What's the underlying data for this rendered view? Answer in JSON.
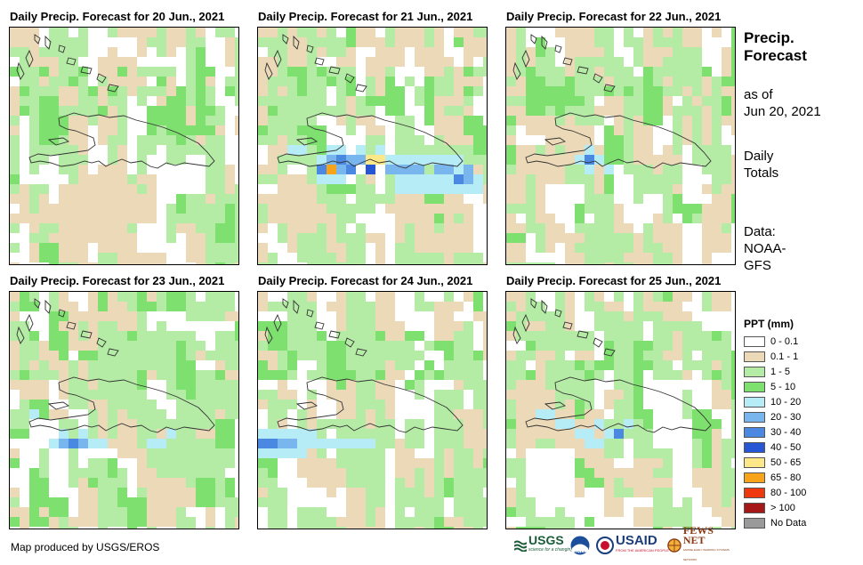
{
  "panels": [
    {
      "title": "Daily Precip. Forecast for 20 Jun., 2021",
      "seed": 11,
      "hot": []
    },
    {
      "title": "Daily Precip. Forecast for 21 Jun., 2021",
      "seed": 23,
      "hot": [
        [
          8,
          4,
          6
        ],
        [
          7,
          4,
          5
        ],
        [
          9,
          4,
          5
        ],
        [
          8,
          5,
          5
        ],
        [
          10,
          4,
          5
        ],
        [
          11,
          4,
          8
        ],
        [
          12,
          4,
          8
        ],
        [
          11,
          5,
          7
        ],
        [
          7,
          5,
          9
        ],
        [
          6,
          5,
          6
        ],
        [
          9,
          5,
          6
        ],
        [
          13,
          5,
          5
        ],
        [
          14,
          5,
          5
        ],
        [
          15,
          5,
          5
        ],
        [
          16,
          5,
          5
        ],
        [
          18,
          5,
          5
        ],
        [
          19,
          5,
          5
        ],
        [
          20,
          6,
          6
        ],
        [
          21,
          6,
          5
        ],
        [
          21,
          5,
          5
        ],
        [
          6,
          4,
          4
        ],
        [
          7,
          3,
          4
        ],
        [
          8,
          3,
          4
        ],
        [
          10,
          3,
          4
        ],
        [
          12,
          3,
          4
        ],
        [
          13,
          4,
          4
        ],
        [
          14,
          4,
          4
        ],
        [
          15,
          4,
          4
        ],
        [
          16,
          4,
          4
        ],
        [
          17,
          4,
          4
        ],
        [
          18,
          4,
          4
        ],
        [
          19,
          4,
          4
        ],
        [
          20,
          4,
          4
        ],
        [
          6,
          6,
          4
        ],
        [
          7,
          6,
          4
        ],
        [
          8,
          6,
          4
        ],
        [
          14,
          6,
          4
        ],
        [
          15,
          6,
          4
        ],
        [
          16,
          6,
          4
        ],
        [
          17,
          6,
          4
        ],
        [
          18,
          6,
          4
        ],
        [
          19,
          6,
          4
        ],
        [
          20,
          5,
          4
        ],
        [
          22,
          6,
          4
        ],
        [
          21,
          7,
          4
        ],
        [
          16,
          7,
          4
        ],
        [
          17,
          7,
          4
        ],
        [
          18,
          7,
          4
        ],
        [
          19,
          7,
          4
        ],
        [
          20,
          7,
          4
        ],
        [
          22,
          7,
          4
        ],
        [
          14,
          7,
          4
        ],
        [
          15,
          7,
          4
        ],
        [
          4,
          3,
          4
        ],
        [
          3,
          3,
          4
        ]
      ]
    },
    {
      "title": "Daily Precip. Forecast for 22 Jun., 2021",
      "seed": 37,
      "hot": [
        [
          8,
          4,
          6
        ],
        [
          7,
          4,
          4
        ],
        [
          9,
          4,
          4
        ],
        [
          8,
          3,
          4
        ],
        [
          8,
          5,
          4
        ],
        [
          10,
          5,
          4
        ]
      ]
    },
    {
      "title": "Daily Precip. Forecast for 23 Jun., 2021",
      "seed": 41,
      "hot": [
        [
          5,
          6,
          5
        ],
        [
          6,
          6,
          6
        ],
        [
          7,
          6,
          5
        ],
        [
          4,
          6,
          4
        ],
        [
          5,
          5,
          4
        ],
        [
          7,
          5,
          4
        ],
        [
          8,
          6,
          4
        ],
        [
          9,
          6,
          4
        ],
        [
          14,
          6,
          4
        ],
        [
          15,
          6,
          4
        ],
        [
          16,
          5,
          4
        ],
        [
          2,
          3,
          4
        ]
      ]
    },
    {
      "title": "Daily Precip. Forecast for 24 Jun., 2021",
      "seed": 53,
      "hot": [
        [
          0,
          6,
          6
        ],
        [
          1,
          6,
          6
        ],
        [
          2,
          6,
          5
        ],
        [
          3,
          6,
          5
        ],
        [
          0,
          5,
          4
        ],
        [
          1,
          5,
          4
        ],
        [
          2,
          5,
          4
        ],
        [
          3,
          5,
          4
        ],
        [
          4,
          5,
          4
        ],
        [
          5,
          5,
          4
        ],
        [
          4,
          6,
          4
        ],
        [
          5,
          6,
          4
        ],
        [
          6,
          6,
          4
        ],
        [
          7,
          6,
          4
        ],
        [
          8,
          6,
          4
        ],
        [
          9,
          6,
          4
        ],
        [
          10,
          6,
          4
        ],
        [
          11,
          6,
          4
        ],
        [
          0,
          7,
          4
        ],
        [
          1,
          7,
          4
        ],
        [
          2,
          7,
          4
        ],
        [
          3,
          7,
          4
        ],
        [
          4,
          7,
          4
        ]
      ]
    },
    {
      "title": "Daily Precip. Forecast for 25 Jun., 2021",
      "seed": 67,
      "hot": [
        [
          11,
          5,
          6
        ],
        [
          6,
          4,
          4
        ],
        [
          7,
          5,
          4
        ],
        [
          8,
          5,
          4
        ],
        [
          9,
          4,
          4
        ],
        [
          10,
          5,
          4
        ],
        [
          12,
          4,
          4
        ],
        [
          4,
          3,
          4
        ],
        [
          5,
          4,
          4
        ],
        [
          3,
          3,
          4
        ],
        [
          8,
          6,
          4
        ],
        [
          9,
          6,
          4
        ]
      ]
    }
  ],
  "side": {
    "title_line1": "Precip.",
    "title_line2": "Forecast",
    "asof_line1": "as of",
    "asof_line2": "Jun 20, 2021",
    "totals_line1": "Daily",
    "totals_line2": "Totals",
    "data_line1": "Data:",
    "data_line2": "NOAA-",
    "data_line3": "GFS"
  },
  "legend": {
    "title": "PPT (mm)",
    "items": [
      {
        "label": "0 - 0.1",
        "color": "#ffffff"
      },
      {
        "label": "0.1 - 1",
        "color": "#ecd9b8"
      },
      {
        "label": "1 - 5",
        "color": "#b5eca5"
      },
      {
        "label": "5 - 10",
        "color": "#7ee06e"
      },
      {
        "label": "10 - 20",
        "color": "#b6ecf6"
      },
      {
        "label": "20 - 30",
        "color": "#7ab6ee"
      },
      {
        "label": "30 - 40",
        "color": "#4a88e2"
      },
      {
        "label": "40 - 50",
        "color": "#2756d4"
      },
      {
        "label": "50 - 65",
        "color": "#fde889"
      },
      {
        "label": "65 - 80",
        "color": "#f8a41a"
      },
      {
        "label": "80 - 100",
        "color": "#f0380e"
      },
      {
        "label": "> 100",
        "color": "#a61717"
      },
      {
        "label": "No Data",
        "color": "#9a9a9a"
      }
    ]
  },
  "credit": "Map produced by USGS/EROS",
  "logos": {
    "usgs": "USGS",
    "usgs_tagline": "science for a changing world",
    "usaid": "USAID",
    "usaid_tagline": "FROM THE AMERICAN PEOPLE",
    "fewsnet": "FEWS NET",
    "fewsnet_tagline": "FAMINE EARLY WARNING SYSTEMS NETWORK",
    "noaa": "NOAA"
  }
}
